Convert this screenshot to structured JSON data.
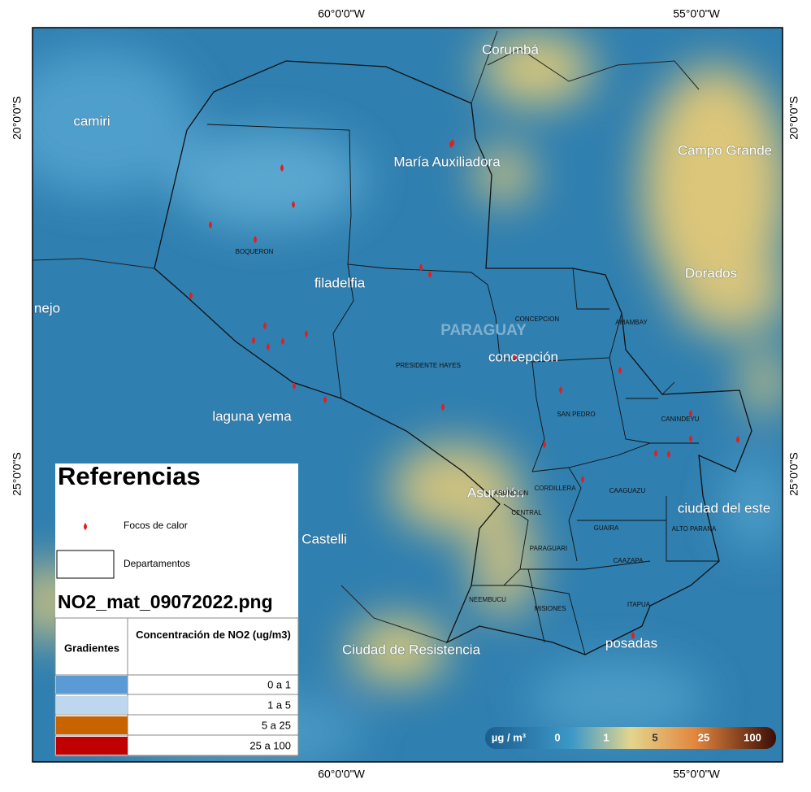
{
  "graticule": {
    "top": [
      "60°0'0\"W",
      "55°0'0\"W"
    ],
    "bottom": [
      "60°0'0\"W",
      "55°0'0\"W"
    ],
    "left": [
      "20°0'0\"S",
      "25°0'0\"S"
    ],
    "right": [
      "20°0'0\"S",
      "25°0'0\"S"
    ]
  },
  "cities": [
    "Corumbá",
    "camiri",
    "María Auxiliadora",
    "Campo Grande",
    "Dorados",
    "filadelfia",
    "nejo",
    "PARAGUAY",
    "concepción",
    "laguna yema",
    "Asunción",
    "ciudad del este",
    "é Castelli",
    "Ciudad de Resistencia",
    "posadas"
  ],
  "departments": [
    "BOQUERON",
    "CONCEPCION",
    "AMAMBAY",
    "PRESIDENTE HAYES",
    "SAN PEDRO",
    "CANINDEYU",
    "CORDILLERA",
    "CAAGUAZU",
    "ASUNCION",
    "CENTRAL",
    "GUAIRA",
    "ALTO PARANA",
    "PARAGUARI",
    "CAAZAPA",
    "NEEMBUCU",
    "MISIONES",
    "ITAPUA"
  ],
  "legend": {
    "title": "Referencias",
    "items": [
      "Focos de calor",
      "Departamentos"
    ],
    "raster": "NO2_mat_09072022.png",
    "table": {
      "headers": [
        "Gradientes",
        "Concentración de NO2 (ug/m3)"
      ],
      "rows": [
        {
          "color": "#5b9bd5",
          "label": "0 a 1"
        },
        {
          "color": "#bdd7ee",
          "label": "1 a 5"
        },
        {
          "color": "#c86400",
          "label": "5 a 25"
        },
        {
          "color": "#c00000",
          "label": "25 a 100"
        }
      ]
    }
  },
  "colorbar": {
    "unit": "µg / m³",
    "labels": [
      "0",
      "1",
      "5",
      "25",
      "100"
    ]
  }
}
